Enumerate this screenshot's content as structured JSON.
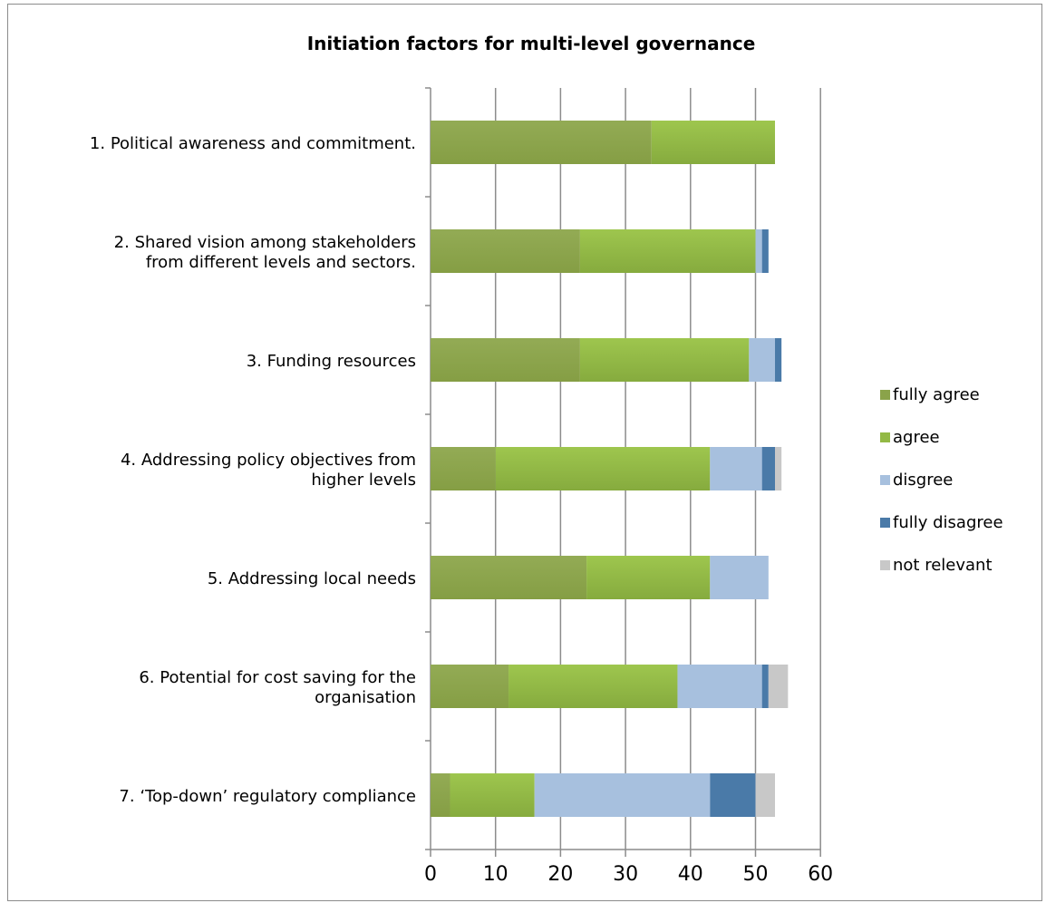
{
  "chart_data": {
    "type": "bar",
    "orientation": "horizontal",
    "stacked": true,
    "title": "Initiation factors for multi-level governance",
    "xlabel": "",
    "ylabel": "",
    "xlim": [
      0,
      60
    ],
    "xticks": [
      0,
      10,
      20,
      30,
      40,
      50,
      60
    ],
    "grid": "vertical",
    "legend_position": "right",
    "categories": [
      [
        "1. Political awareness and commitment."
      ],
      [
        "2. Shared vision among stakeholders",
        "from different levels and sectors."
      ],
      [
        "3. Funding resources"
      ],
      [
        "4. Addressing policy objectives from",
        "higher levels"
      ],
      [
        "5. Addressing local needs"
      ],
      [
        "6. Potential for cost saving for the",
        "organisation"
      ],
      [
        "7. ‘Top-down’ regulatory compliance"
      ]
    ],
    "series": [
      {
        "name": "fully agree",
        "color": "#8aa34a",
        "values": [
          34,
          23,
          23,
          10,
          24,
          12,
          3
        ]
      },
      {
        "name": "agree",
        "color": "#93b945",
        "values": [
          19,
          27,
          26,
          33,
          19,
          26,
          13
        ]
      },
      {
        "name": "disgree",
        "color": "#a7c0de",
        "values": [
          0,
          1,
          4,
          8,
          9,
          13,
          27
        ]
      },
      {
        "name": "fully disagree",
        "color": "#4a7aa8",
        "values": [
          0,
          1,
          1,
          2,
          0,
          1,
          7
        ]
      },
      {
        "name": "not relevant",
        "color": "#c8c8c8",
        "values": [
          0,
          0,
          0,
          1,
          0,
          3,
          3
        ]
      }
    ]
  }
}
